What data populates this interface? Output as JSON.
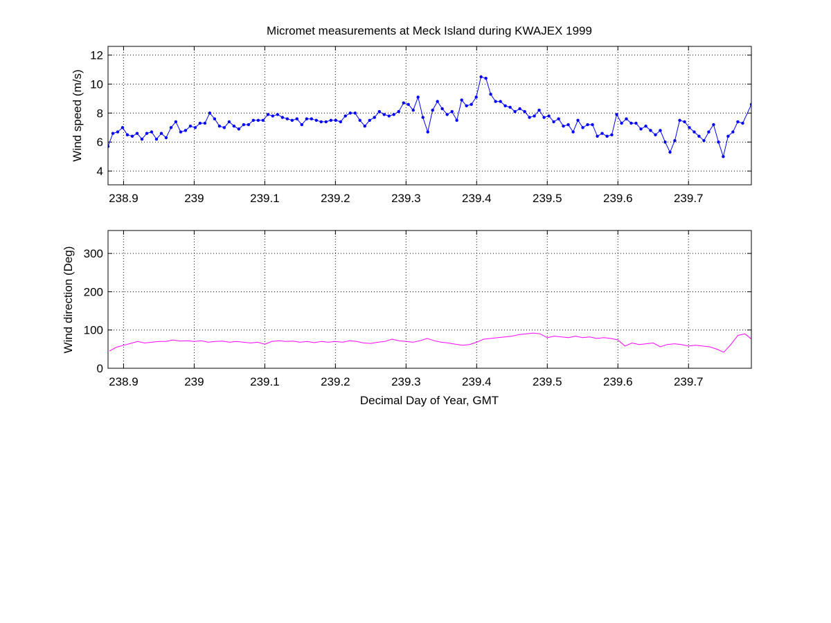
{
  "chart_data": [
    {
      "type": "line",
      "title": "Micromet measurements at Meck Island during KWAJEX 1999",
      "xlabel": "",
      "ylabel": "Wind speed (m/s)",
      "xlim": [
        238.878,
        239.789
      ],
      "ylim": [
        3.05,
        12.6
      ],
      "xticks": [
        238.9,
        239,
        239.1,
        239.2,
        239.3,
        239.4,
        239.5,
        239.6,
        239.7
      ],
      "xtick_labels": [
        "238.9",
        "239",
        "239.1",
        "239.2",
        "239.3",
        "239.4",
        "239.5",
        "239.6",
        "239.7"
      ],
      "yticks": [
        4,
        6,
        8,
        10,
        12
      ],
      "ytick_labels": [
        "4",
        "6",
        "8",
        "10",
        "12"
      ],
      "grid": true,
      "color": "#0000ff",
      "marker": "dot",
      "x": [
        238.878,
        238.8849,
        238.8917,
        238.8986,
        238.9054,
        238.9123,
        238.9192,
        238.926,
        238.9329,
        238.9397,
        238.9466,
        238.9535,
        238.9603,
        238.9672,
        238.974,
        238.9809,
        238.9878,
        238.9946,
        239.0015,
        239.0083,
        239.0152,
        239.0221,
        239.0289,
        239.0358,
        239.0426,
        239.0495,
        239.0564,
        239.0632,
        239.0701,
        239.0769,
        239.0838,
        239.0907,
        239.0975,
        239.1044,
        239.1112,
        239.1181,
        239.125,
        239.1318,
        239.1387,
        239.1455,
        239.1524,
        239.1593,
        239.1661,
        239.173,
        239.1798,
        239.1867,
        239.1936,
        239.2004,
        239.2073,
        239.2141,
        239.221,
        239.2279,
        239.2347,
        239.2416,
        239.2484,
        239.2553,
        239.2622,
        239.269,
        239.2759,
        239.2827,
        239.2896,
        239.2965,
        239.3033,
        239.3102,
        239.317,
        239.3239,
        239.3308,
        239.3376,
        239.3445,
        239.3513,
        239.3582,
        239.3651,
        239.3719,
        239.3788,
        239.3856,
        239.3925,
        239.3994,
        239.4062,
        239.4131,
        239.4199,
        239.4268,
        239.4337,
        239.4405,
        239.4474,
        239.4542,
        239.4611,
        239.468,
        239.4748,
        239.4817,
        239.4885,
        239.4954,
        239.5023,
        239.5091,
        239.516,
        239.5228,
        239.5297,
        239.5366,
        239.5434,
        239.5503,
        239.5571,
        239.564,
        239.5709,
        239.5777,
        239.5846,
        239.5914,
        239.5983,
        239.6052,
        239.612,
        239.6189,
        239.6257,
        239.6326,
        239.6395,
        239.6463,
        239.6532,
        239.66,
        239.6669,
        239.6738,
        239.6806,
        239.6875,
        239.6944,
        239.7012,
        239.7081,
        239.7149,
        239.7218,
        239.7286,
        239.7355,
        239.7424,
        239.7492,
        239.7561,
        239.7629,
        239.7698,
        239.7767,
        239.789
      ],
      "y": [
        5.7,
        6.6,
        6.7,
        7.0,
        6.5,
        6.4,
        6.6,
        6.2,
        6.6,
        6.7,
        6.2,
        6.6,
        6.3,
        7.0,
        7.4,
        6.7,
        6.8,
        7.1,
        7.0,
        7.3,
        7.3,
        8.0,
        7.6,
        7.1,
        7.0,
        7.4,
        7.1,
        6.9,
        7.2,
        7.2,
        7.5,
        7.5,
        7.5,
        7.9,
        7.8,
        7.9,
        7.7,
        7.6,
        7.5,
        7.6,
        7.2,
        7.6,
        7.6,
        7.5,
        7.4,
        7.4,
        7.5,
        7.5,
        7.4,
        7.8,
        8.0,
        8.0,
        7.5,
        7.1,
        7.5,
        7.7,
        8.1,
        7.9,
        7.8,
        7.9,
        8.1,
        8.7,
        8.6,
        8.2,
        9.1,
        7.7,
        6.7,
        8.2,
        8.8,
        8.3,
        7.9,
        8.1,
        7.5,
        8.9,
        8.5,
        8.6,
        9.1,
        10.5,
        10.4,
        9.3,
        8.8,
        8.8,
        8.5,
        8.4,
        8.1,
        8.3,
        8.1,
        7.7,
        7.8,
        8.2,
        7.7,
        7.8,
        7.4,
        7.6,
        7.1,
        7.2,
        6.7,
        7.5,
        7.0,
        7.2,
        7.2,
        6.4,
        6.6,
        6.4,
        6.5,
        7.9,
        7.3,
        7.6,
        7.3,
        7.3,
        6.9,
        7.1,
        6.8,
        6.5,
        6.8,
        6.0,
        5.3,
        6.1,
        7.5,
        7.4,
        7.0,
        6.7,
        6.4,
        6.1,
        6.7,
        7.2,
        6.0,
        5.0,
        6.4,
        6.7,
        7.4,
        7.3,
        8.6
      ]
    },
    {
      "type": "line",
      "title": "",
      "xlabel": "Decimal Day of Year, GMT",
      "ylabel": "Wind direction (Deg)",
      "xlim": [
        238.878,
        239.789
      ],
      "ylim": [
        0,
        360
      ],
      "xticks": [
        238.9,
        239,
        239.1,
        239.2,
        239.3,
        239.4,
        239.5,
        239.6,
        239.7
      ],
      "xtick_labels": [
        "238.9",
        "239",
        "239.1",
        "239.2",
        "239.3",
        "239.4",
        "239.5",
        "239.6",
        "239.7"
      ],
      "yticks": [
        0,
        100,
        200,
        300
      ],
      "ytick_labels": [
        "0",
        "100",
        "200",
        "300"
      ],
      "grid": true,
      "color": "#ff00ff",
      "marker": "none",
      "x": [
        238.88,
        238.89,
        238.9,
        238.91,
        238.92,
        238.93,
        238.94,
        238.95,
        238.96,
        238.97,
        238.98,
        238.99,
        239.0,
        239.01,
        239.02,
        239.03,
        239.04,
        239.05,
        239.06,
        239.07,
        239.08,
        239.09,
        239.1,
        239.11,
        239.12,
        239.13,
        239.14,
        239.15,
        239.16,
        239.17,
        239.18,
        239.19,
        239.2,
        239.21,
        239.22,
        239.23,
        239.24,
        239.25,
        239.26,
        239.27,
        239.28,
        239.29,
        239.3,
        239.31,
        239.32,
        239.33,
        239.34,
        239.35,
        239.36,
        239.37,
        239.38,
        239.39,
        239.4,
        239.41,
        239.42,
        239.43,
        239.44,
        239.45,
        239.46,
        239.47,
        239.48,
        239.49,
        239.5,
        239.51,
        239.52,
        239.53,
        239.54,
        239.55,
        239.56,
        239.57,
        239.58,
        239.59,
        239.6,
        239.61,
        239.62,
        239.63,
        239.64,
        239.65,
        239.66,
        239.67,
        239.68,
        239.69,
        239.7,
        239.71,
        239.72,
        239.73,
        239.74,
        239.75,
        239.76,
        239.77,
        239.78,
        239.79
      ],
      "y": [
        45,
        55,
        60,
        65,
        70,
        66,
        68,
        70,
        70,
        74,
        71,
        72,
        70,
        72,
        68,
        70,
        71,
        68,
        70,
        68,
        66,
        68,
        63,
        70,
        72,
        70,
        71,
        68,
        70,
        67,
        70,
        68,
        70,
        68,
        72,
        70,
        66,
        65,
        68,
        70,
        76,
        72,
        70,
        68,
        72,
        78,
        72,
        68,
        66,
        63,
        60,
        62,
        68,
        76,
        78,
        80,
        82,
        84,
        88,
        90,
        92,
        90,
        80,
        84,
        82,
        80,
        84,
        80,
        82,
        78,
        80,
        78,
        74,
        58,
        66,
        62,
        64,
        66,
        56,
        62,
        64,
        62,
        58,
        60,
        58,
        56,
        50,
        42,
        62,
        86,
        90,
        75
      ]
    }
  ]
}
